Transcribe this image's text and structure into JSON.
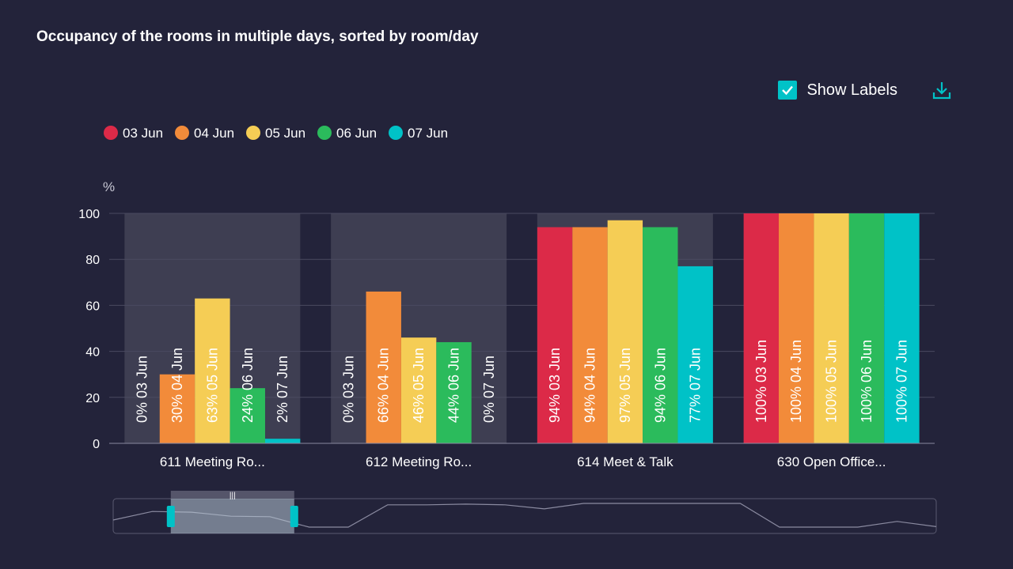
{
  "title": "Occupancy of the rooms in multiple days, sorted by room/day",
  "toolbar": {
    "show_labels": "Show Labels",
    "show_labels_checked": true,
    "download_icon": "download-icon"
  },
  "colors": {
    "background": "#23233a",
    "band": "#3e3e52",
    "grid": "#4a4a60",
    "accent": "#00c2c7"
  },
  "chart_data": {
    "type": "bar",
    "ylabel": "%",
    "ylim": [
      0,
      100
    ],
    "yticks": [
      0,
      20,
      40,
      60,
      80,
      100
    ],
    "categories": [
      "611 Meeting Ro...",
      "612 Meeting Ro...",
      "614 Meet & Talk",
      "630 Open Office..."
    ],
    "highlighted_categories": [
      0,
      1,
      2
    ],
    "legend_position": "top-left",
    "grid": true,
    "show_labels": true,
    "series": [
      {
        "name": "03 Jun",
        "color": "#dc2a48",
        "values": [
          0,
          0,
          94,
          100
        ]
      },
      {
        "name": "04 Jun",
        "color": "#f28b3a",
        "values": [
          30,
          66,
          94,
          100
        ]
      },
      {
        "name": "05 Jun",
        "color": "#f5cd55",
        "values": [
          63,
          46,
          97,
          100
        ]
      },
      {
        "name": "06 Jun",
        "color": "#2bbb5c",
        "values": [
          24,
          44,
          94,
          100
        ]
      },
      {
        "name": "07 Jun",
        "color": "#00c2c7",
        "values": [
          2,
          0,
          77,
          100
        ]
      }
    ],
    "navigator": {
      "values": [
        30,
        66,
        63,
        46,
        44,
        0,
        0,
        94,
        94,
        97,
        94,
        77,
        100,
        100,
        100,
        100,
        100,
        0,
        0,
        0,
        24,
        2
      ],
      "range_start": 0.07,
      "range_end": 0.22
    }
  }
}
